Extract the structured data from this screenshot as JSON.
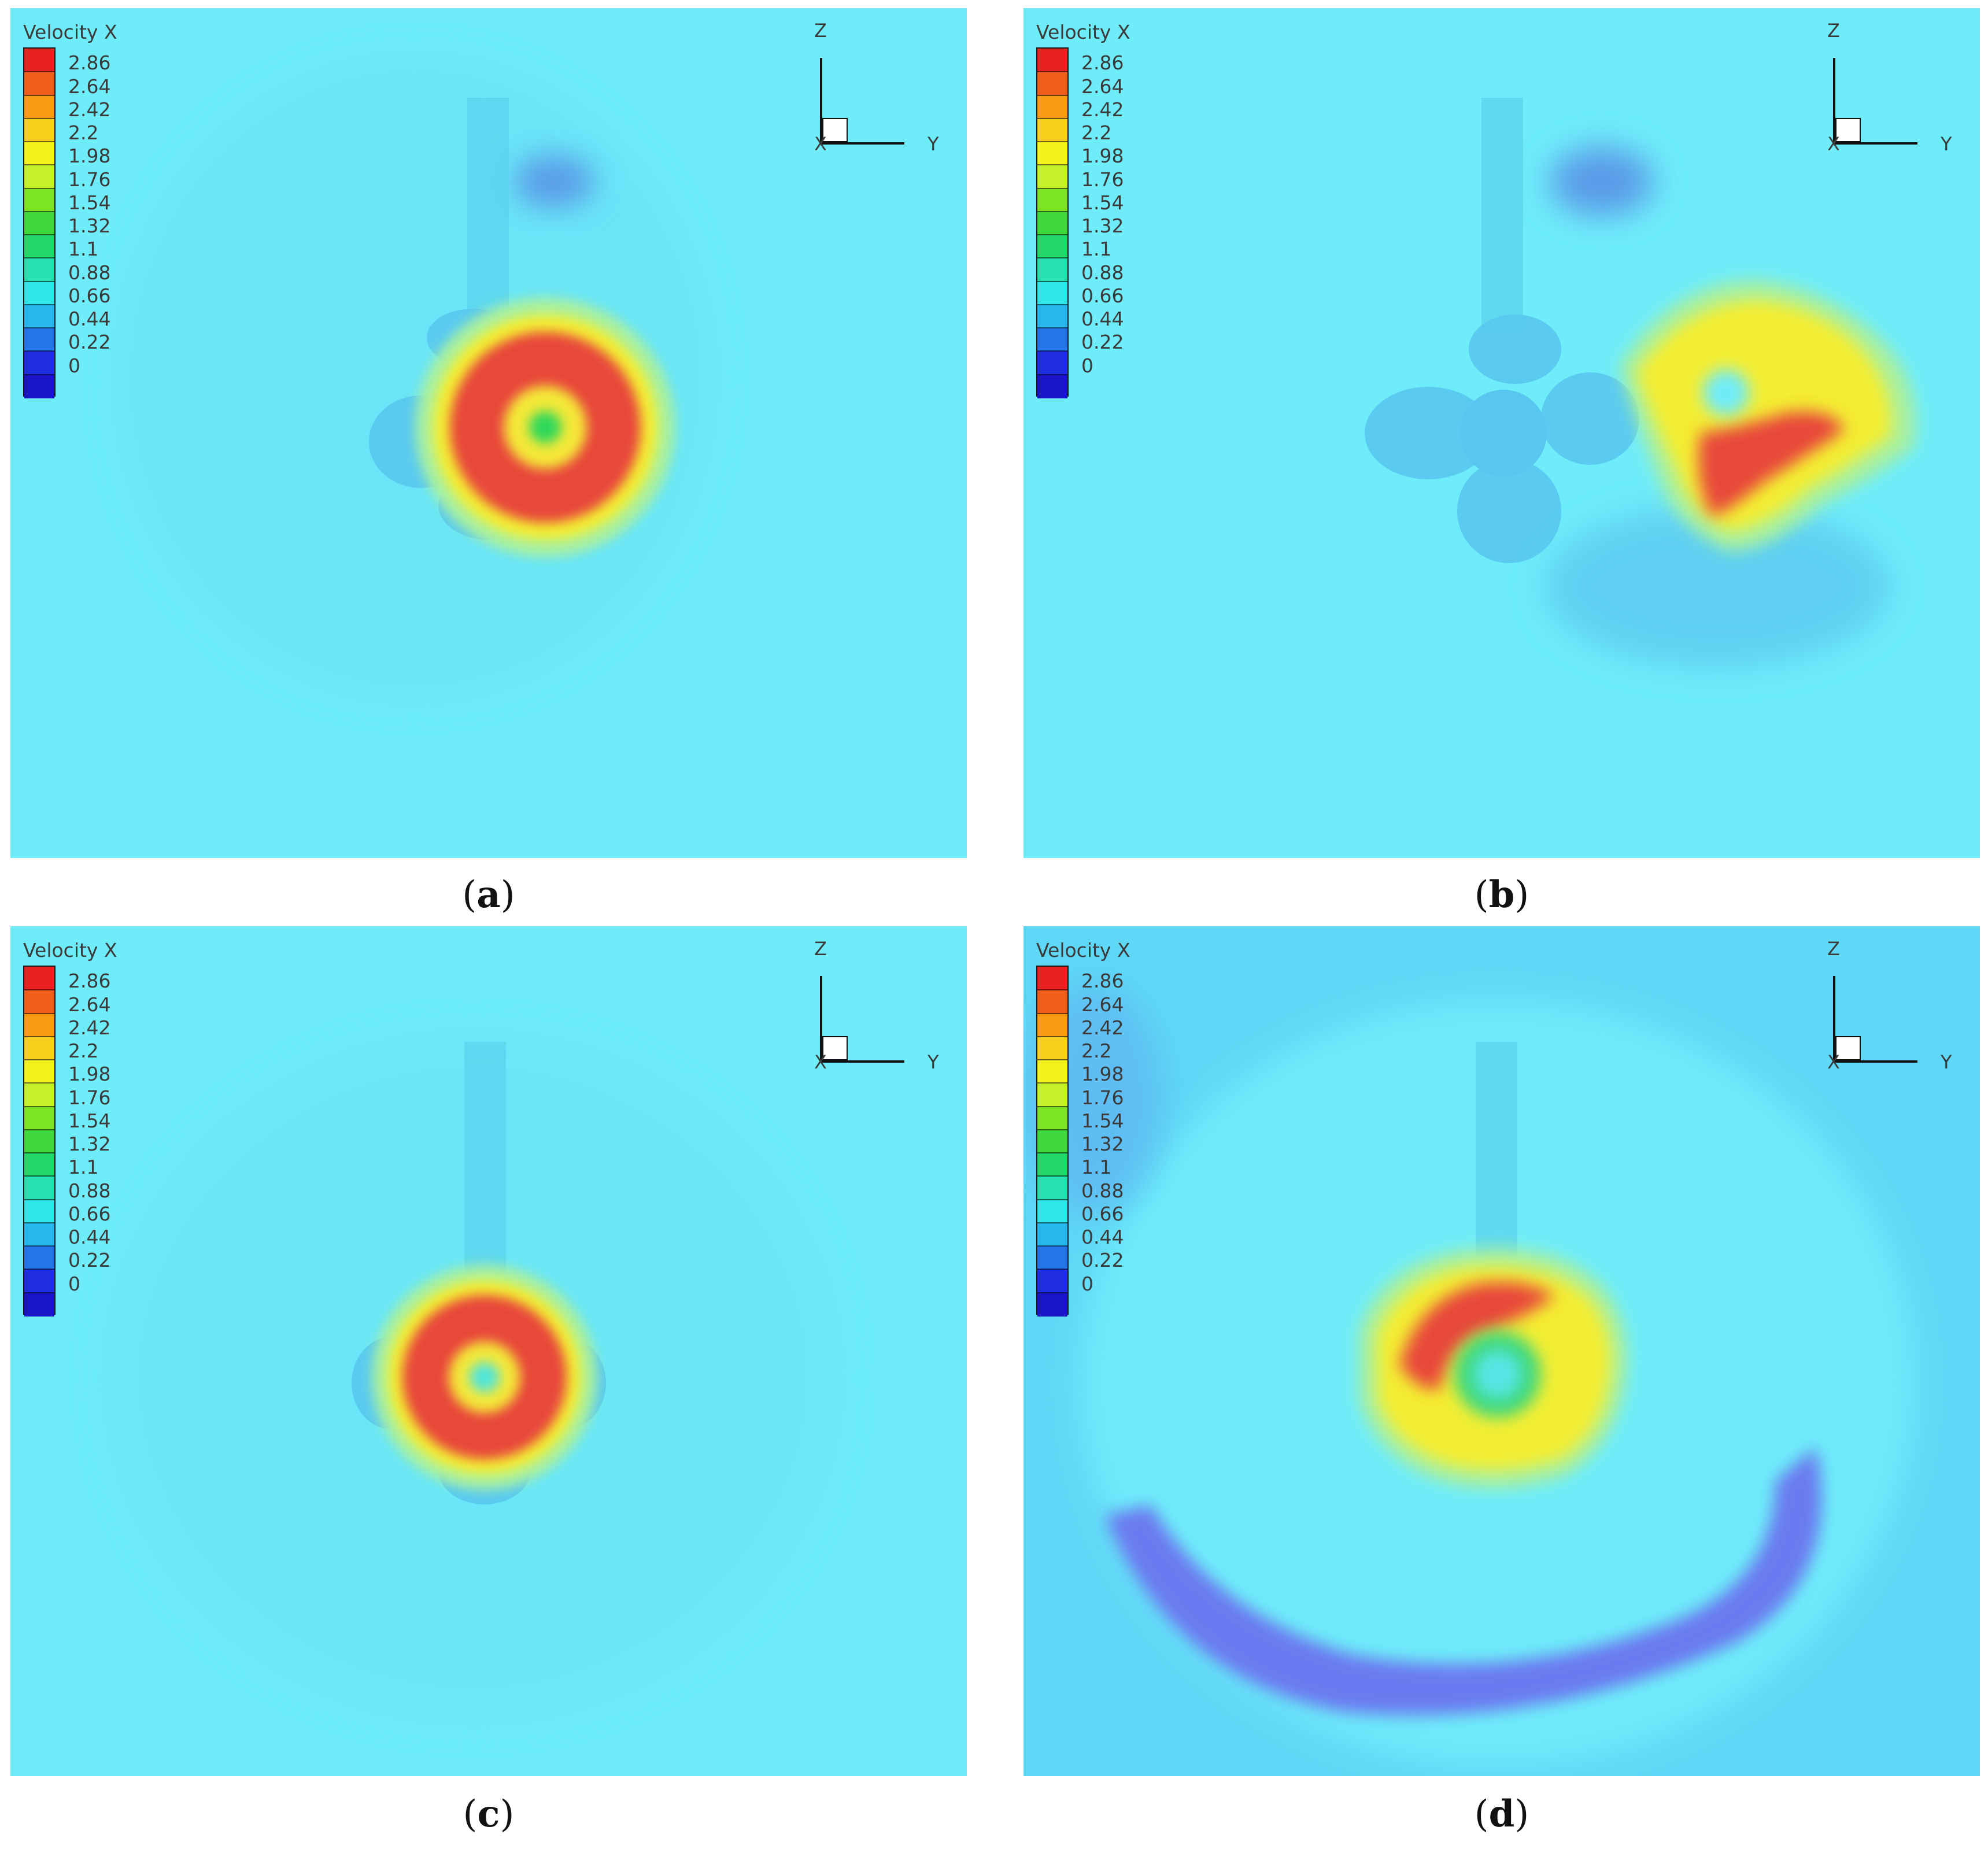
{
  "legend": {
    "title": "Velocity X",
    "ticks": [
      "2.86",
      "2.64",
      "2.42",
      "2.2",
      "1.98",
      "1.76",
      "1.54",
      "1.32",
      "1.1",
      "0.88",
      "0.66",
      "0.44",
      "0.22",
      "0"
    ]
  },
  "axes": {
    "z": "Z",
    "y": "Y",
    "x": "X"
  },
  "captions": {
    "a": "a",
    "b": "b",
    "c": "c",
    "d": "d"
  },
  "colors": {
    "background": "#6eecfa",
    "colormap": [
      "#e8201e",
      "#f0601c",
      "#fa9c12",
      "#f8cf1c",
      "#f4f41c",
      "#c6f22a",
      "#7ee426",
      "#3ed83a",
      "#22d86a",
      "#26e0b0",
      "#30e6e8",
      "#28b8ee",
      "#2476e8",
      "#1f2ee2",
      "#1a14c8"
    ]
  }
}
